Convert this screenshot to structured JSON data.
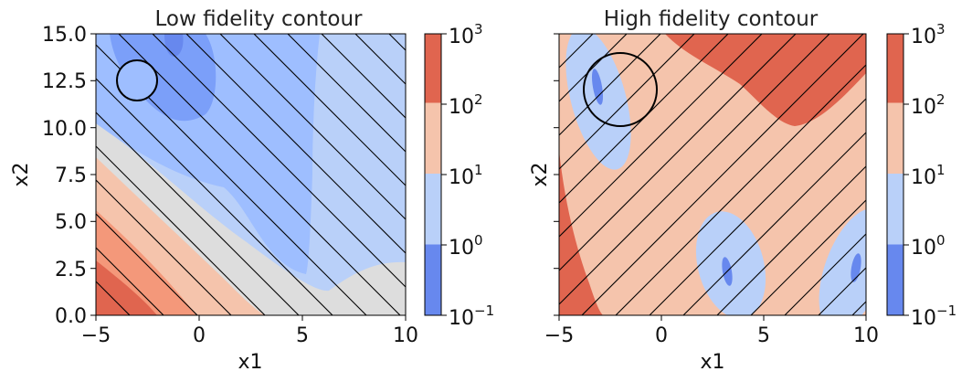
{
  "chart_data": [
    {
      "type": "contour",
      "title": "Low fidelity contour",
      "xlabel": "x1",
      "ylabel": "x2",
      "xlim": [
        -5,
        10
      ],
      "ylim": [
        0,
        15
      ],
      "xticks": [
        -5,
        0,
        5,
        10
      ],
      "xtick_labels": [
        "−5",
        "0",
        "5",
        "10"
      ],
      "yticks": [
        0,
        2.5,
        5,
        7.5,
        10,
        12.5,
        15
      ],
      "ytick_labels": [
        "0.0",
        "2.5",
        "5.0",
        "7.5",
        "10.0",
        "12.5",
        "15.0"
      ],
      "hatch": "diagonal-backslash",
      "circle": {
        "center": [
          -3,
          12.4
        ],
        "radius": 1.0
      }
    },
    {
      "type": "contour",
      "title": "High fidelity contour",
      "xlabel": "x1",
      "ylabel": "x2",
      "xlim": [
        -5,
        10
      ],
      "ylim": [
        0,
        15
      ],
      "xticks": [
        -5,
        0,
        5,
        10
      ],
      "xtick_labels": [
        "−5",
        "0",
        "5",
        "10"
      ],
      "hatch": "diagonal-slash",
      "circle": {
        "center": [
          -2.1,
          12.0
        ],
        "radius": 1.8
      }
    }
  ],
  "colorbar": {
    "scale": "log",
    "levels": [
      0.1,
      1,
      10,
      100,
      1000
    ],
    "labels": [
      {
        "base": "10",
        "exp": "3"
      },
      {
        "base": "10",
        "exp": "2"
      },
      {
        "base": "10",
        "exp": "1"
      },
      {
        "base": "10",
        "exp": "0"
      },
      {
        "base": "10",
        "exp": "−1"
      }
    ],
    "colors": [
      "#6788ee",
      "#b9d0f9",
      "#f5c4ac",
      "#e0654f"
    ]
  }
}
